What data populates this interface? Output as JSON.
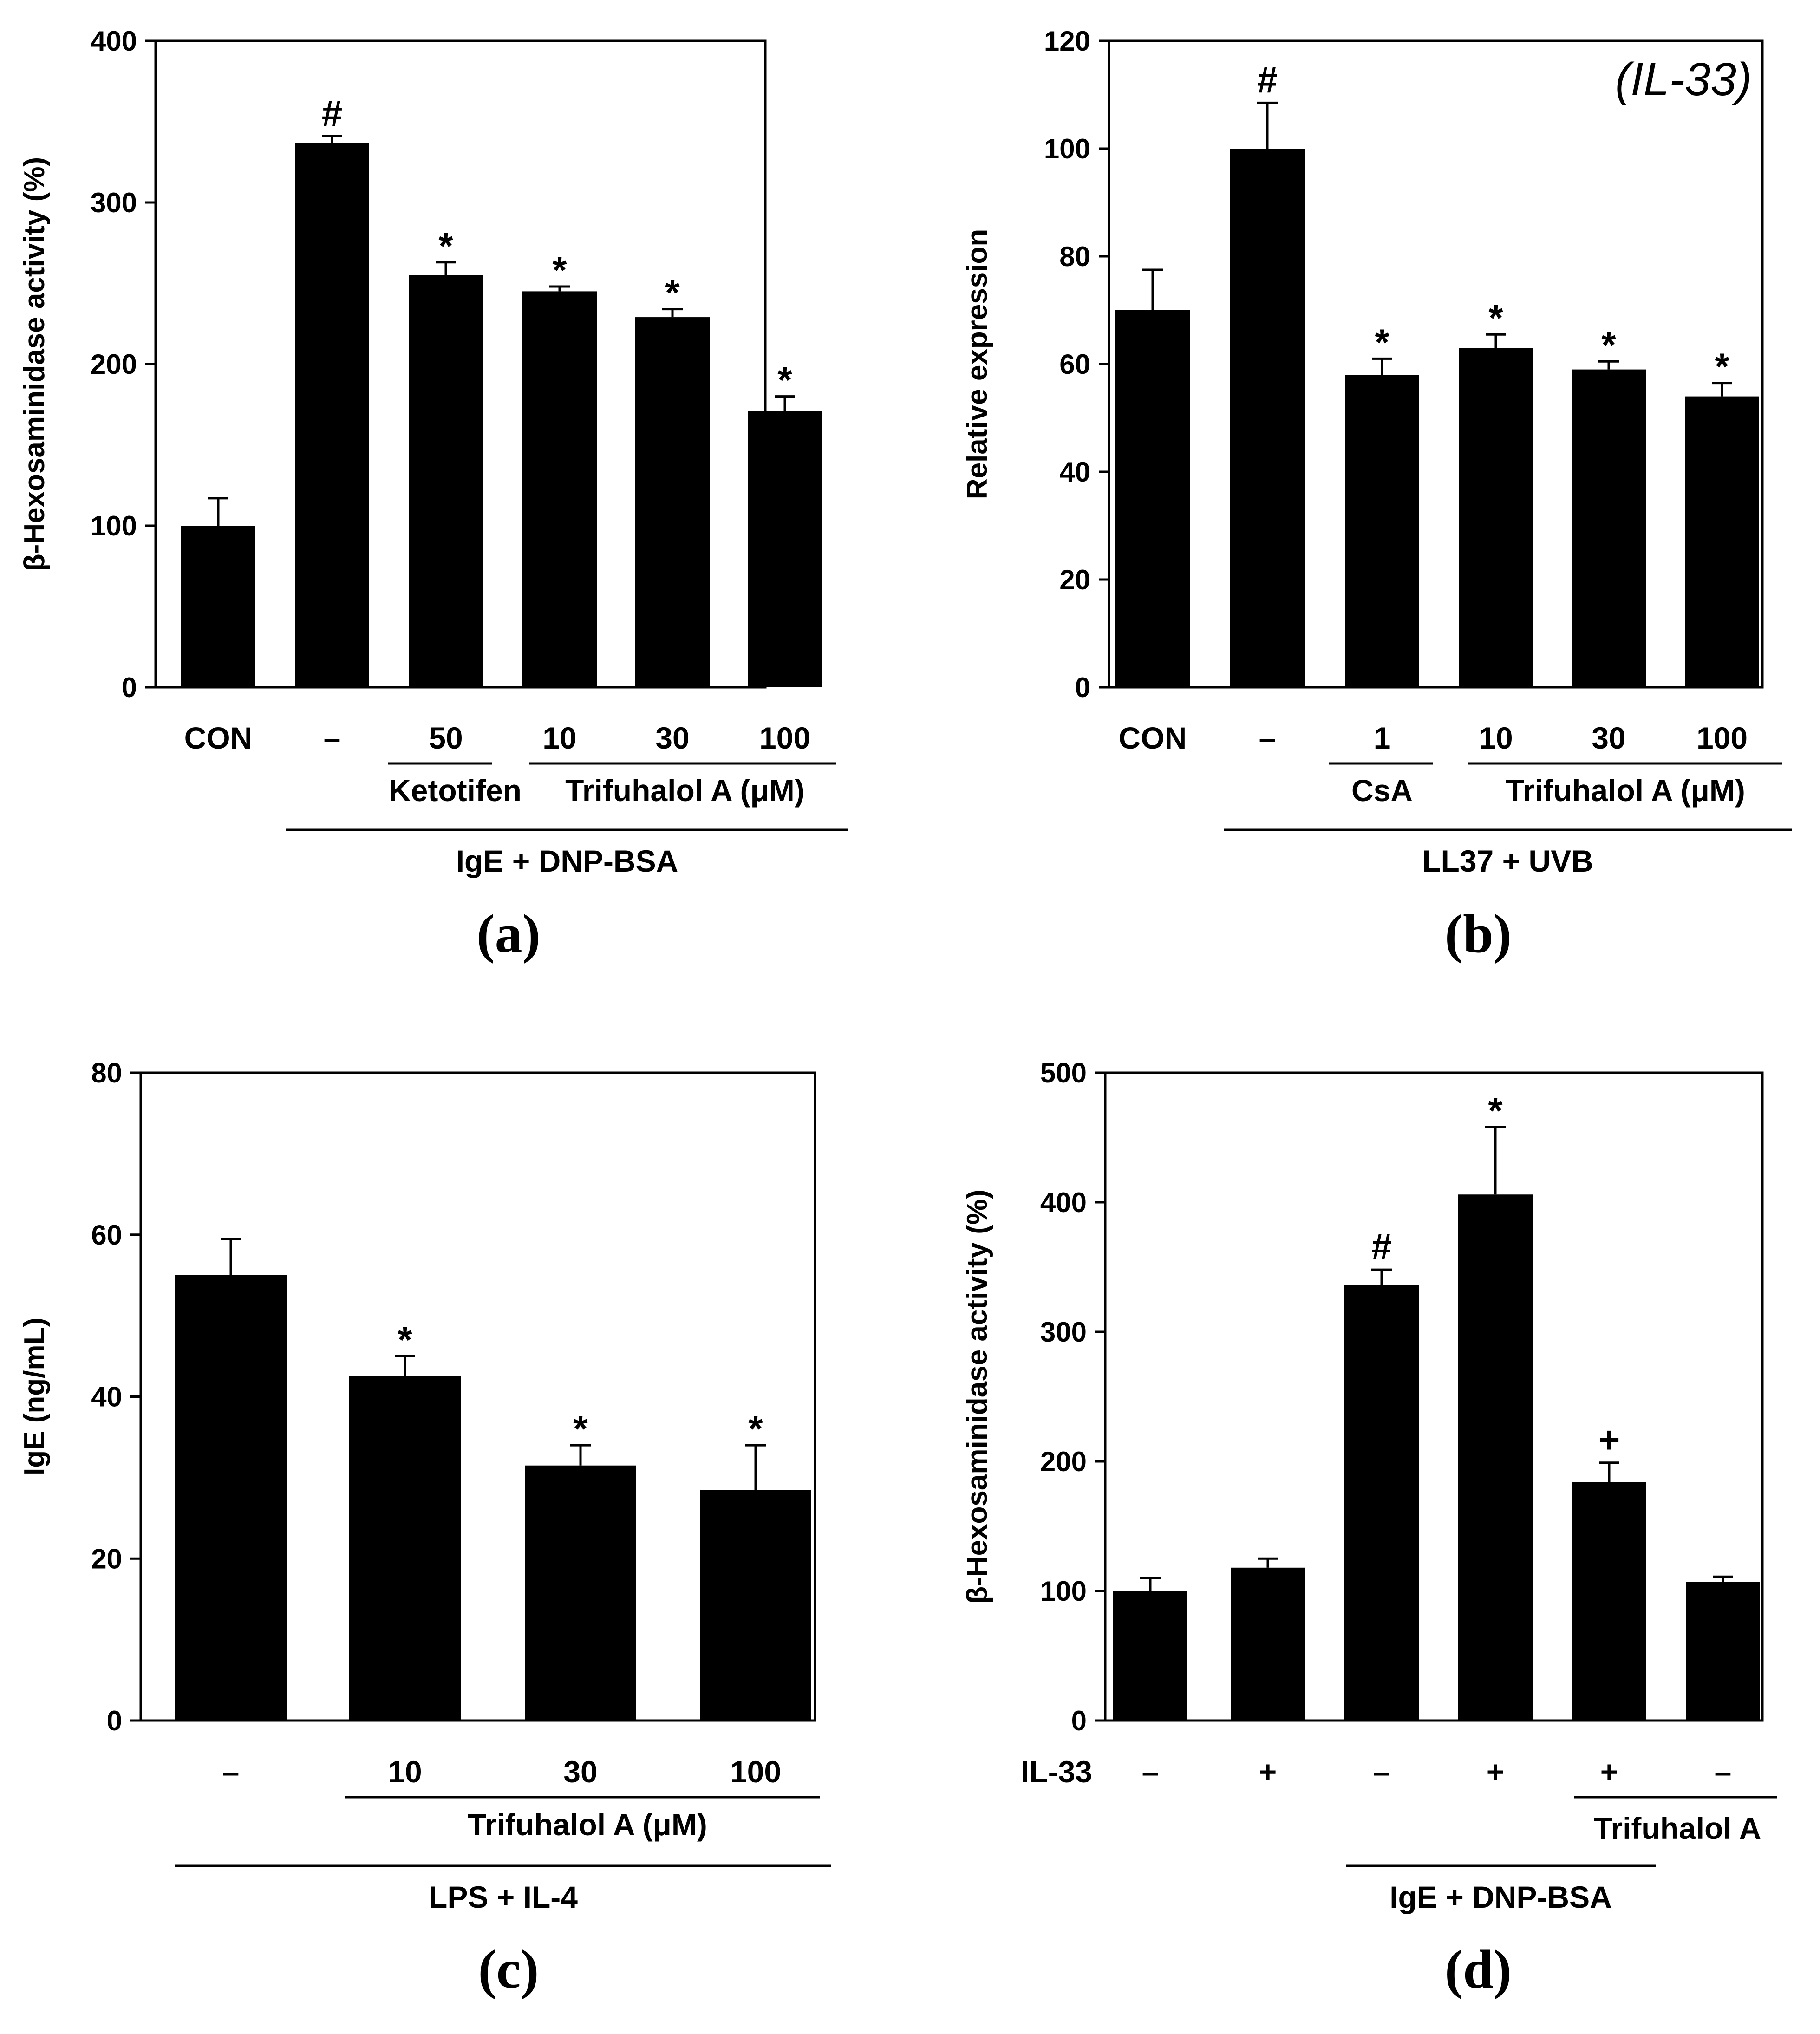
{
  "chart_data": [
    {
      "id": "a",
      "type": "bar",
      "panel_label": "(a)",
      "ylabel": "β-Hexosaminidase activity (%)",
      "ylim": [
        0,
        400
      ],
      "yticks": [
        "0",
        "100",
        "200",
        "300",
        "400"
      ],
      "ytick_values": [
        0,
        100,
        200,
        300,
        400
      ],
      "bars": [
        {
          "category": "CON",
          "value": 100,
          "error": 17,
          "mark": ""
        },
        {
          "category": "–",
          "value": 337,
          "error": 4,
          "mark": "#"
        },
        {
          "category": "50",
          "value": 255,
          "error": 8,
          "mark": "*"
        },
        {
          "category": "10",
          "value": 245,
          "error": 3,
          "mark": "*"
        },
        {
          "category": "30",
          "value": 229,
          "error": 5,
          "mark": "*"
        },
        {
          "category": "100",
          "value": 171,
          "error": 9,
          "mark": "*"
        }
      ],
      "group_labels": [
        "Ketotifen",
        "Trifuhalol  A (μM)"
      ],
      "treatment_label": "IgE + DNP-BSA"
    },
    {
      "id": "b",
      "type": "bar",
      "panel_label": "(b)",
      "inset_label": "(IL-33)",
      "ylabel": "Relative expression",
      "ylim": [
        0,
        120
      ],
      "yticks": [
        "0",
        "20",
        "40",
        "60",
        "80",
        "100",
        "120"
      ],
      "ytick_values": [
        0,
        20,
        40,
        60,
        80,
        100,
        120
      ],
      "bars": [
        {
          "category": "CON",
          "value": 70,
          "error": 7.5,
          "mark": ""
        },
        {
          "category": "–",
          "value": 100,
          "error": 8.5,
          "mark": "#"
        },
        {
          "category": "1",
          "value": 58,
          "error": 3,
          "mark": "*"
        },
        {
          "category": "10",
          "value": 63,
          "error": 2.5,
          "mark": "*"
        },
        {
          "category": "30",
          "value": 59,
          "error": 1.5,
          "mark": "*"
        },
        {
          "category": "100",
          "value": 54,
          "error": 2.5,
          "mark": "*"
        }
      ],
      "group_labels": [
        "CsA",
        "Trifuhalol  A (μM)"
      ],
      "treatment_label": "LL37 + UVB"
    },
    {
      "id": "c",
      "type": "bar",
      "panel_label": "(c)",
      "ylabel": "IgE (ng/mL)",
      "ylim": [
        0,
        80
      ],
      "yticks": [
        "0",
        "20",
        "40",
        "60",
        "80"
      ],
      "ytick_values": [
        0,
        20,
        40,
        60,
        80
      ],
      "bars": [
        {
          "category": "–",
          "value": 55,
          "error": 4.5,
          "mark": ""
        },
        {
          "category": "10",
          "value": 42.5,
          "error": 2.5,
          "mark": "*"
        },
        {
          "category": "30",
          "value": 31.5,
          "error": 2.5,
          "mark": "*"
        },
        {
          "category": "100",
          "value": 28.5,
          "error": 5.5,
          "mark": "*"
        }
      ],
      "group_labels": [
        "Trifuhalol  A (μM)"
      ],
      "treatment_label": "LPS + IL-4"
    },
    {
      "id": "d",
      "type": "bar",
      "panel_label": "(d)",
      "ylabel": "β-Hexosaminidase activity (%)",
      "ylim": [
        0,
        500
      ],
      "yticks": [
        "0",
        "100",
        "200",
        "300",
        "400",
        "500"
      ],
      "ytick_values": [
        0,
        100,
        200,
        300,
        400,
        500
      ],
      "row_label": "IL-33",
      "bars": [
        {
          "category": "–",
          "value": 100,
          "error": 10,
          "mark": ""
        },
        {
          "category": "+",
          "value": 118,
          "error": 7,
          "mark": ""
        },
        {
          "category": "–",
          "value": 336,
          "error": 12,
          "mark": "#"
        },
        {
          "category": "+",
          "value": 406,
          "error": 52,
          "mark": "*"
        },
        {
          "category": "+",
          "value": 184,
          "error": 15,
          "mark": "+"
        },
        {
          "category": "–",
          "value": 107,
          "error": 4,
          "mark": ""
        }
      ],
      "group_labels": [
        "Trifuhalol  A"
      ],
      "treatment_label": "IgE + DNP-BSA"
    }
  ]
}
